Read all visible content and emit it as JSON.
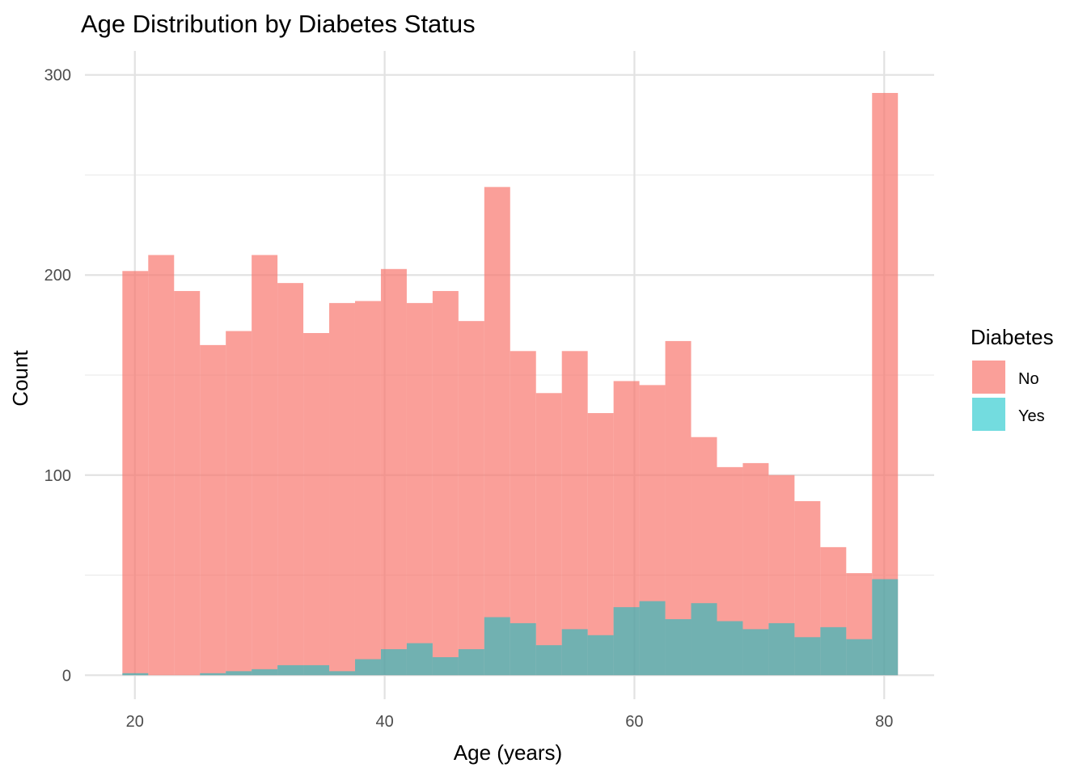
{
  "chart_data": {
    "type": "bar",
    "title": "Age Distribution by Diabetes Status",
    "xlabel": "Age (years)",
    "ylabel": "Count",
    "xlim": [
      16.0,
      84.0
    ],
    "ylim": [
      -12,
      312
    ],
    "x_ticks": [
      20,
      40,
      60,
      80
    ],
    "y_ticks": [
      0,
      100,
      200,
      300
    ],
    "grid": true,
    "legend": {
      "title": "Diabetes",
      "position": "right"
    },
    "bin_start": 19.0,
    "bin_width": 2.07,
    "series": [
      {
        "name": "No",
        "color": "#F8766D",
        "values": [
          202,
          210,
          192,
          165,
          172,
          210,
          196,
          171,
          186,
          187,
          203,
          186,
          192,
          177,
          244,
          162,
          141,
          162,
          131,
          147,
          145,
          167,
          119,
          104,
          106,
          100,
          87,
          64,
          51,
          291
        ]
      },
      {
        "name": "Yes",
        "color": "#00BFC4",
        "values": [
          1,
          0,
          0,
          1,
          2,
          3,
          5,
          5,
          2,
          8,
          13,
          16,
          9,
          13,
          29,
          26,
          15,
          23,
          20,
          34,
          37,
          28,
          36,
          27,
          23,
          26,
          19,
          24,
          18,
          48
        ]
      }
    ]
  }
}
